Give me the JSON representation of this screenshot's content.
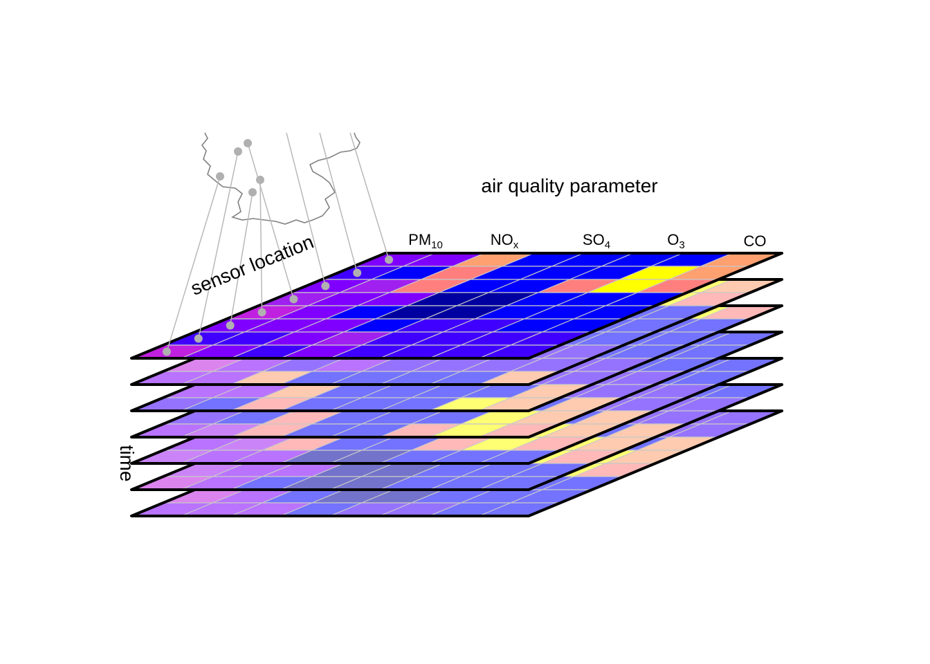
{
  "diagram": {
    "axis_labels": {
      "parameter": "air quality parameter",
      "location": "sensor location",
      "time": "time"
    },
    "parameters": [
      {
        "base": "PM",
        "sub": "10"
      },
      {
        "base": "NO",
        "sub": "x"
      },
      {
        "base": "SO",
        "sub": "4"
      },
      {
        "base": "O",
        "sub": "3"
      },
      {
        "base": "CO",
        "sub": ""
      }
    ],
    "layer_count": 7,
    "rows_per_layer": 8,
    "sensor_count": 8,
    "colors": {
      "grid_line": "#c8c8c8",
      "layer_border": "#000000",
      "sensor_dot": "#b0b0b0",
      "map_border": "#808080",
      "cell_palette": {
        "violet": "#8000ff",
        "blue": "#0000ff",
        "indigo": "#4000ff",
        "navy": "#0000a0",
        "magenta": "#c020e0",
        "purple": "#a020f0",
        "salmon": "#ff7f7f",
        "orange": "#ffa070",
        "yellow": "#ffff00"
      },
      "top_layer_cells": [
        [
          "violet",
          "violet",
          "orange",
          "blue",
          "blue",
          "blue",
          "blue",
          "orange"
        ],
        [
          "indigo",
          "blue",
          "salmon",
          "blue",
          "blue",
          "blue",
          "yellow",
          "orange"
        ],
        [
          "violet",
          "purple",
          "salmon",
          "blue",
          "blue",
          "salmon",
          "yellow",
          "salmon"
        ],
        [
          "purple",
          "violet",
          "violet",
          "navy",
          "navy",
          "blue",
          "blue",
          "blue"
        ],
        [
          "magenta",
          "violet",
          "blue",
          "navy",
          "navy",
          "blue",
          "blue",
          "blue"
        ],
        [
          "violet",
          "violet",
          "violet",
          "blue",
          "indigo",
          "indigo",
          "blue",
          "blue"
        ],
        [
          "indigo",
          "indigo",
          "violet",
          "purple",
          "indigo",
          "indigo",
          "indigo",
          "indigo"
        ],
        [
          "magenta",
          "violet",
          "indigo",
          "violet",
          "indigo",
          "indigo",
          "indigo",
          "indigo"
        ]
      ]
    }
  }
}
